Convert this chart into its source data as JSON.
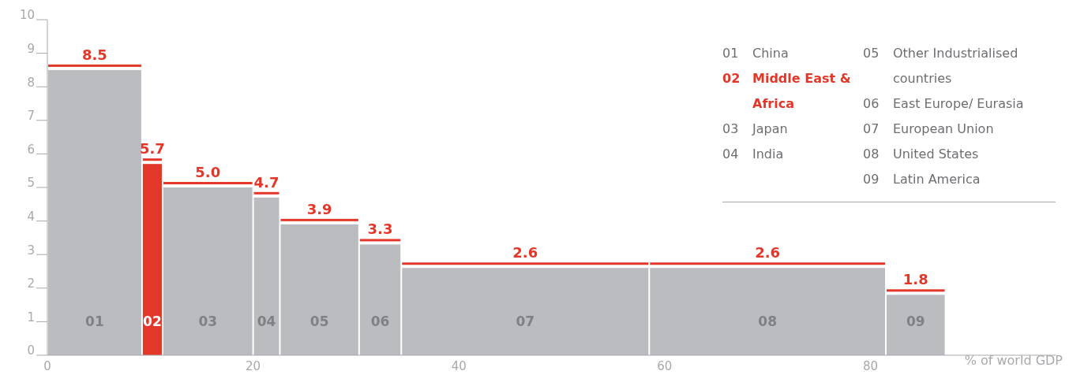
{
  "chart_data": {
    "type": "histogram",
    "xlabel": "% of world GDP",
    "categories": [
      "China",
      "Middle East & Africa",
      "Japan",
      "India",
      "Other Industrialised countries",
      "East Europe/ Eurasia",
      "European Union",
      "United States",
      "Latin America"
    ],
    "bins": [
      0,
      9.2,
      11.2,
      20,
      22.6,
      30.3,
      34.4,
      58.5,
      81.5,
      87.3
    ],
    "values": [
      8.5,
      5.7,
      5.0,
      4.7,
      3.9,
      3.3,
      2.6,
      2.6,
      1.8
    ],
    "value_labels": [
      "8.5",
      "5.7",
      "5.0",
      "4.7",
      "3.9",
      "3.3",
      "2.6",
      "2.6",
      "1.8"
    ],
    "color": "#bbbcc0",
    "colors": [
      "#bbbcc0",
      "#e3372a",
      "#bbbcc0",
      "#bbbcc0",
      "#bbbcc0",
      "#bbbcc0",
      "#bbbcc0",
      "#bbbcc0",
      "#bbbcc0"
    ],
    "annotations": [
      "01",
      "02",
      "03",
      "04",
      "05",
      "06",
      "07",
      "08",
      "09"
    ],
    "xlim": [
      0,
      98
    ],
    "xticks": [
      0,
      20,
      40,
      60,
      80
    ],
    "ylim": [
      0,
      10
    ],
    "yticks": [
      0,
      1,
      2,
      3,
      4,
      5,
      6,
      7,
      8,
      9,
      10
    ],
    "grid": false
  }
}
